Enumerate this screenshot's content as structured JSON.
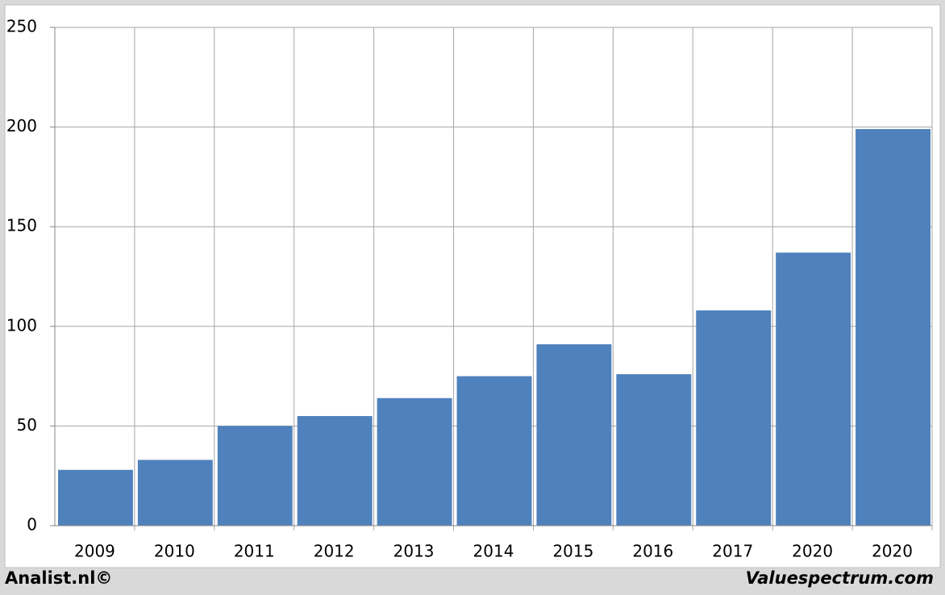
{
  "chart_data": {
    "type": "bar",
    "categories": [
      "2009",
      "2010",
      "2011",
      "2012",
      "2013",
      "2014",
      "2015",
      "2016",
      "2017",
      "2020",
      "2020"
    ],
    "values": [
      28,
      33,
      50,
      55,
      64,
      75,
      91,
      76,
      108,
      137,
      199
    ],
    "color": "#4f81bd",
    "ylim": [
      0,
      250
    ],
    "yticks": [
      0,
      50,
      100,
      150,
      200,
      250
    ],
    "grid": true,
    "annotations": [
      "Analist.nl©",
      "Valuespectrum.com"
    ]
  }
}
